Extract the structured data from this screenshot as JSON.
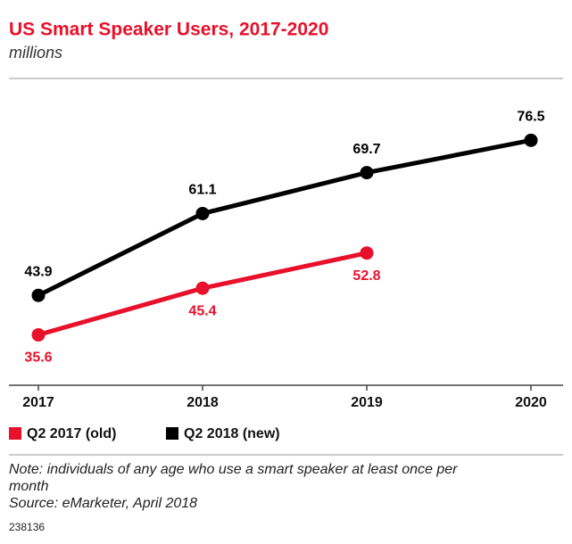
{
  "chart_data": {
    "type": "line",
    "title": "US Smart Speaker Users, 2017-2020",
    "subtitle": "millions",
    "categories": [
      "2017",
      "2018",
      "2019",
      "2020"
    ],
    "series": [
      {
        "name": "Q2 2017 (old)",
        "color": "#e8102a",
        "values": [
          35.6,
          45.4,
          52.8,
          null
        ]
      },
      {
        "name": "Q2 2018 (new)",
        "color": "#000000",
        "values": [
          43.9,
          61.1,
          69.7,
          76.5
        ]
      }
    ],
    "ylim": [
      25,
      85
    ],
    "note": "Note: individuals of any age who use a smart speaker at least once per month",
    "source": "Source: eMarketer, April 2018",
    "id": "238136"
  }
}
